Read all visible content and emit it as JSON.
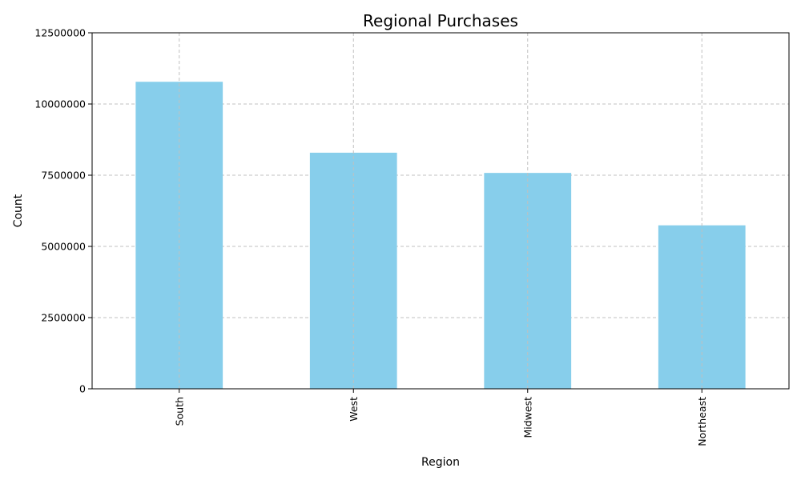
{
  "chart_data": {
    "type": "bar",
    "title": "Regional Purchases",
    "xlabel": "Region",
    "ylabel": "Count",
    "categories": [
      "South",
      "West",
      "Midwest",
      "Northeast"
    ],
    "values": [
      10780000,
      8290000,
      7580000,
      5740000
    ],
    "ylim": [
      0,
      12500000
    ],
    "yticks": [
      0,
      2500000,
      5000000,
      7500000,
      10000000,
      12500000
    ],
    "ytick_labels": [
      "0",
      "2500000",
      "5000000",
      "7500000",
      "10000000",
      "12500000"
    ],
    "grid": true,
    "bar_color": "#87ceeb",
    "grid_color": "#c0c0c0"
  }
}
